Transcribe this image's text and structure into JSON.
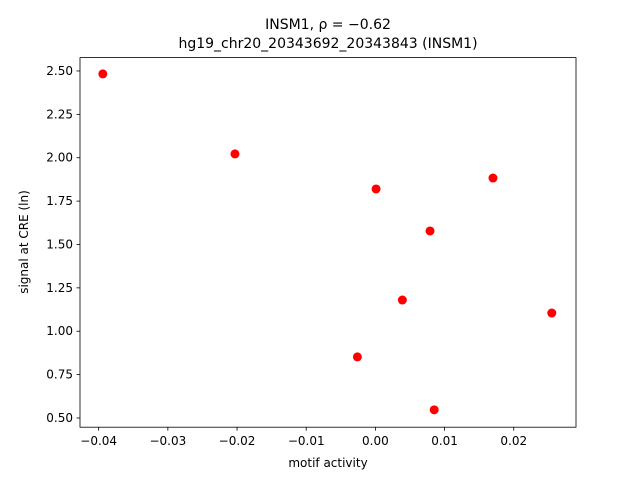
{
  "chart_data": {
    "type": "scatter",
    "title": "INSM1, ρ = −0.62",
    "subtitle": "hg19_chr20_20343692_20343843 (INSM1)",
    "x_label": "motif activity",
    "y_label": "signal at CRE (ln)",
    "color": "#ff0000",
    "x": [
      -0.0394,
      -0.0203,
      0.0001,
      0.017,
      0.0079,
      0.0039,
      0.0255,
      -0.0026,
      0.0085
    ],
    "values": [
      2.483,
      2.022,
      1.82,
      1.883,
      1.578,
      1.18,
      1.105,
      0.852,
      0.547
    ],
    "xlim": [
      -0.0427,
      0.029
    ],
    "ylim": [
      0.447,
      2.577
    ],
    "xticks": [
      {
        "value": -0.04,
        "label": "−0.04"
      },
      {
        "value": -0.03,
        "label": "−0.03"
      },
      {
        "value": -0.02,
        "label": "−0.02"
      },
      {
        "value": -0.01,
        "label": "−0.01"
      },
      {
        "value": 0,
        "label": "0.00"
      },
      0.01,
      0.02
    ],
    "yticks": [
      {
        "value": 0.5,
        "label": "0.50"
      },
      0.75,
      {
        "value": 1,
        "label": "1.00"
      },
      1.25,
      {
        "value": 1.5,
        "label": "1.50"
      },
      1.75,
      {
        "value": 2,
        "label": "2.00"
      },
      2.25,
      {
        "value": 2.5,
        "label": "2.50"
      }
    ]
  }
}
